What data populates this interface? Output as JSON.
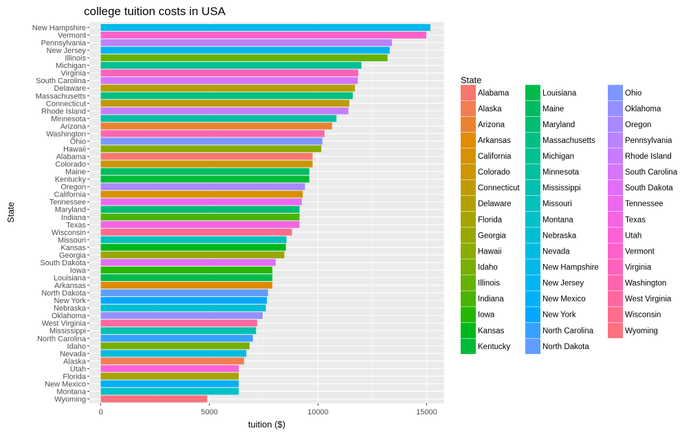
{
  "chart_data": {
    "type": "bar",
    "orientation": "horizontal",
    "title": "college tuition costs in USA",
    "xlabel": "tuition ($)",
    "ylabel": "State",
    "xlim": [
      0,
      15900
    ],
    "xticks": [
      0,
      5000,
      10000,
      15000
    ],
    "xtick_labels": [
      "0",
      "5000",
      "10000",
      "15000"
    ],
    "grid": true,
    "legend": {
      "title": "State",
      "placement": "right"
    },
    "categories": [
      "New Hampshire",
      "Vermont",
      "Pennsylvania",
      "New Jersey",
      "Illinois",
      "Michigan",
      "Virginia",
      "South Carolina",
      "Delaware",
      "Massachusetts",
      "Connecticut",
      "Rhode Island",
      "Minnesota",
      "Arizona",
      "Washington",
      "Ohio",
      "Hawaii",
      "Alabama",
      "Colorado",
      "Maine",
      "Kentucky",
      "Oregon",
      "California",
      "Tennessee",
      "Maryland",
      "Indiana",
      "Texas",
      "Wisconsin",
      "Missouri",
      "Kansas",
      "Georgia",
      "South Dakota",
      "Iowa",
      "Louisiana",
      "Arkansas",
      "North Dakota",
      "New York",
      "Nebraska",
      "Oklahoma",
      "West Virginia",
      "Mississippi",
      "North Carolina",
      "Idaho",
      "Nevada",
      "Alaska",
      "Utah",
      "Florida",
      "New Mexico",
      "Montana",
      "Wyoming"
    ],
    "values": [
      15170,
      14990,
      13400,
      13300,
      13200,
      12000,
      11850,
      11830,
      11700,
      11600,
      11440,
      11400,
      10850,
      10650,
      10300,
      10200,
      10150,
      9750,
      9750,
      9600,
      9600,
      9400,
      9300,
      9250,
      9150,
      9150,
      9150,
      8800,
      8550,
      8520,
      8450,
      8050,
      7900,
      7900,
      7900,
      7700,
      7650,
      7600,
      7450,
      7200,
      7150,
      7000,
      6850,
      6700,
      6600,
      6350,
      6350,
      6350,
      6350,
      4900
    ],
    "legend_order": [
      "Alabama",
      "Alaska",
      "Arizona",
      "Arkansas",
      "California",
      "Colorado",
      "Connecticut",
      "Delaware",
      "Florida",
      "Georgia",
      "Hawaii",
      "Idaho",
      "Illinois",
      "Indiana",
      "Iowa",
      "Kansas",
      "Kentucky",
      "Louisiana",
      "Maine",
      "Maryland",
      "Massachusetts",
      "Michigan",
      "Minnesota",
      "Mississippi",
      "Missouri",
      "Montana",
      "Nebraska",
      "Nevada",
      "New Hampshire",
      "New Jersey",
      "New Mexico",
      "New York",
      "North Carolina",
      "North Dakota",
      "Ohio",
      "Oklahoma",
      "Oregon",
      "Pennsylvania",
      "Rhode Island",
      "South Carolina",
      "South Dakota",
      "Tennessee",
      "Texas",
      "Utah",
      "Vermont",
      "Virginia",
      "Washington",
      "West Virginia",
      "Wisconsin",
      "Wyoming"
    ],
    "colors": {
      "panel_background": "#ebebeb",
      "grid_major": "#ffffff",
      "palette": [
        "#F8766D",
        "#F27D53",
        "#EA8331",
        "#E08B00",
        "#D69100",
        "#CB9600",
        "#BF9B00",
        "#B3A000",
        "#A6A400",
        "#98A800",
        "#89AC00",
        "#78AF00",
        "#64B200",
        "#4BB400",
        "#24B700",
        "#00B81B",
        "#00BA38",
        "#00BB4E",
        "#00BC61",
        "#00BD72",
        "#00BF82",
        "#00C091",
        "#00C0A0",
        "#00C1AE",
        "#00C1BB",
        "#00C0C8",
        "#00BFD4",
        "#00BCDF",
        "#00B9E9",
        "#00B5F2",
        "#00B0F6",
        "#00A8FF",
        "#35A2FF",
        "#619CFF",
        "#7C97FF",
        "#9590FF",
        "#A989FF",
        "#B983FF",
        "#C77CFF",
        "#D675FA",
        "#E26EF7",
        "#EC69EF",
        "#F564E3",
        "#FD61D7",
        "#FF61C9",
        "#FF62BC",
        "#FF65AE",
        "#FF689F",
        "#FE6C8E",
        "#FB717E"
      ]
    }
  }
}
